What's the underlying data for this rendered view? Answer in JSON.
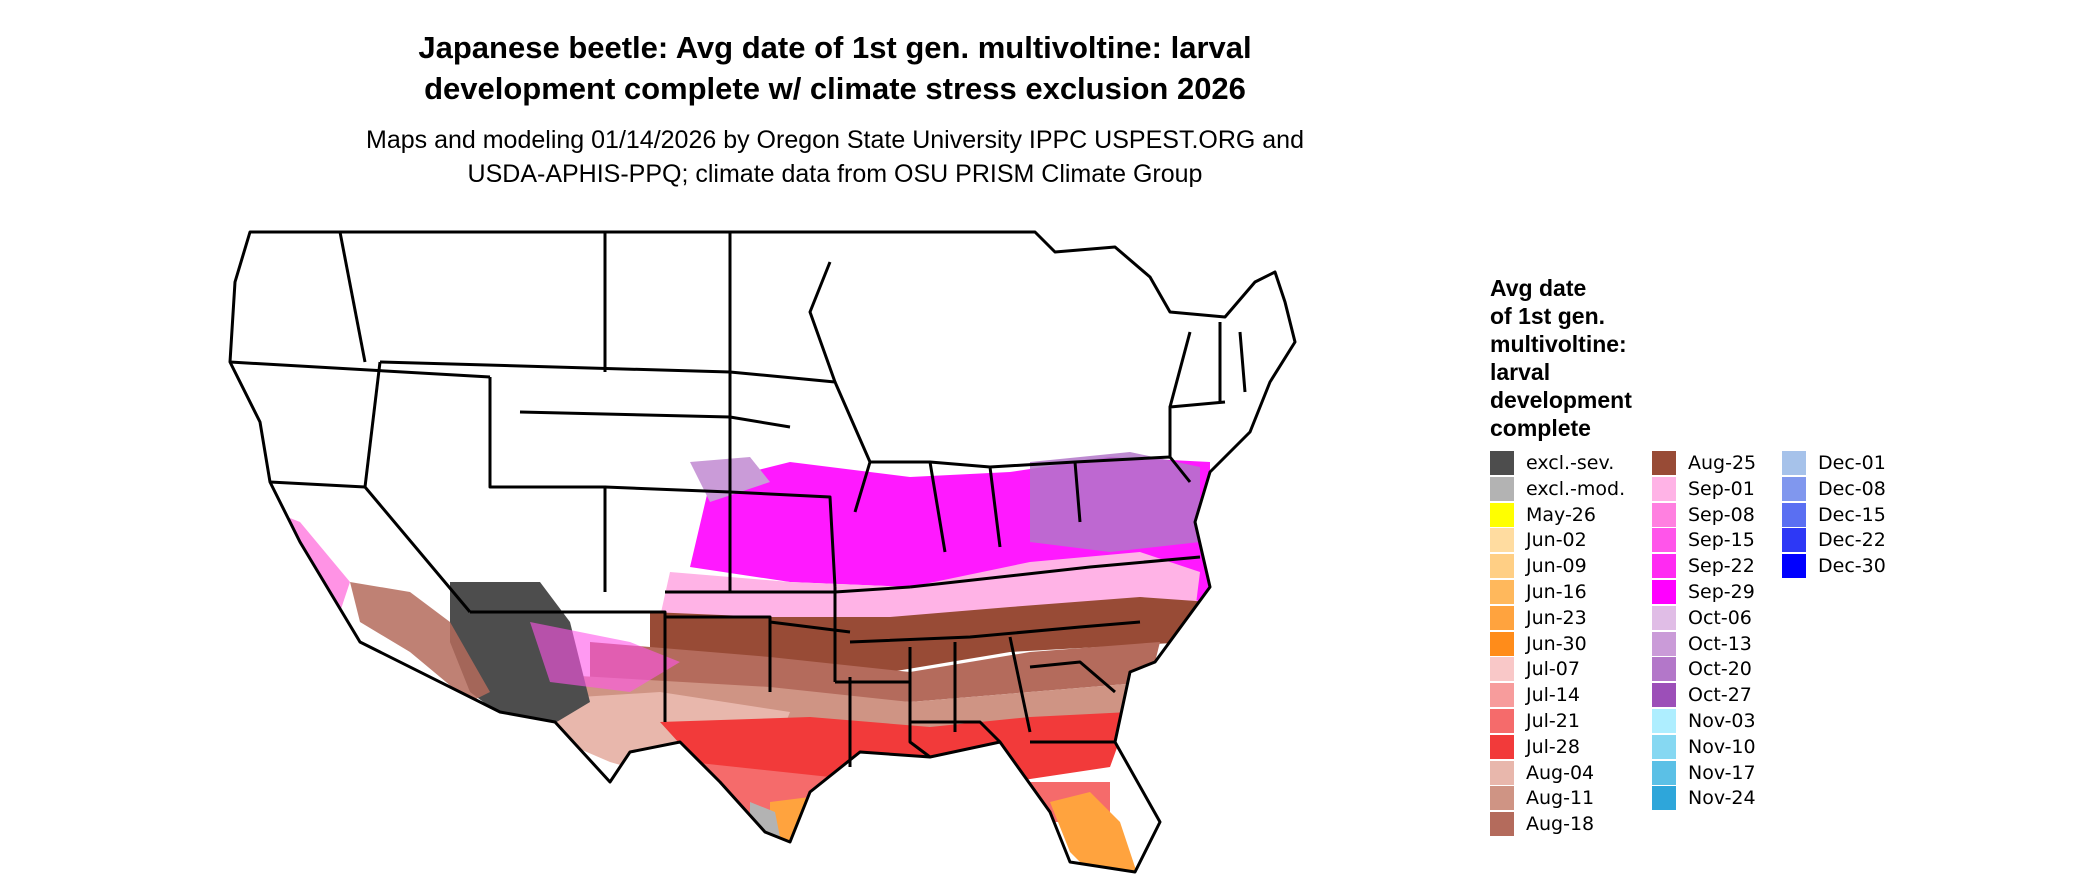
{
  "title_lines": [
    "Japanese beetle: Avg date of 1st gen. multivoltine: larval",
    "development complete w/ climate stress exclusion 2026"
  ],
  "subtitle_lines": [
    "Maps and modeling 01/14/2026 by Oregon State University IPPC USPEST.ORG and",
    "USDA-APHIS-PPQ; climate data from OSU PRISM Climate Group"
  ],
  "legend": {
    "title_lines": [
      "Avg date",
      "of 1st gen.",
      "multivoltine:",
      "larval",
      "development",
      "complete"
    ],
    "items": [
      {
        "label": "excl.-sev.",
        "color": "#4d4d4d"
      },
      {
        "label": "excl.-mod.",
        "color": "#b3b3b3"
      },
      {
        "label": "May-26",
        "color": "#ffff00"
      },
      {
        "label": "Jun-02",
        "color": "#ffdca0"
      },
      {
        "label": "Jun-09",
        "color": "#ffcf85"
      },
      {
        "label": "Jun-16",
        "color": "#ffb85c"
      },
      {
        "label": "Jun-23",
        "color": "#ffa33e"
      },
      {
        "label": "Jun-30",
        "color": "#ff8c1a"
      },
      {
        "label": "Jul-07",
        "color": "#f9c8c8"
      },
      {
        "label": "Jul-14",
        "color": "#f79c9c"
      },
      {
        "label": "Jul-21",
        "color": "#f56b6b"
      },
      {
        "label": "Jul-28",
        "color": "#f23a3a"
      },
      {
        "label": "Aug-04",
        "color": "#e8b7ac"
      },
      {
        "label": "Aug-11",
        "color": "#cf9484"
      },
      {
        "label": "Aug-18",
        "color": "#b46b5c"
      },
      {
        "label": "Aug-25",
        "color": "#984b36"
      },
      {
        "label": "Sep-01",
        "color": "#ffb3e6"
      },
      {
        "label": "Sep-08",
        "color": "#ff80e0"
      },
      {
        "label": "Sep-15",
        "color": "#ff55ea"
      },
      {
        "label": "Sep-22",
        "color": "#ff2af2"
      },
      {
        "label": "Sep-29",
        "color": "#ff00ff"
      },
      {
        "label": "Oct-06",
        "color": "#e0bde6"
      },
      {
        "label": "Oct-13",
        "color": "#ca9bd8"
      },
      {
        "label": "Oct-20",
        "color": "#b377c9"
      },
      {
        "label": "Oct-27",
        "color": "#9c4fb8"
      },
      {
        "label": "Nov-03",
        "color": "#aeeeff"
      },
      {
        "label": "Nov-10",
        "color": "#86d8f2"
      },
      {
        "label": "Nov-17",
        "color": "#5bc0e6"
      },
      {
        "label": "Nov-24",
        "color": "#2ea6da"
      },
      {
        "label": "Dec-01",
        "color": "#a6c2ea"
      },
      {
        "label": "Dec-08",
        "color": "#8097ee"
      },
      {
        "label": "Dec-15",
        "color": "#5a6ff2"
      },
      {
        "label": "Dec-22",
        "color": "#2d38f6"
      },
      {
        "label": "Dec-30",
        "color": "#0000ff"
      }
    ]
  }
}
